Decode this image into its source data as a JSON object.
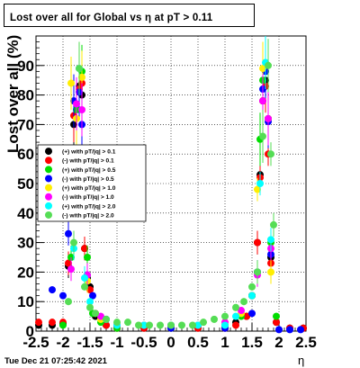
{
  "title": "Lost over all for Global vs  η at pT > 0.11",
  "timestamp": "Tue Dec 21 07:25:42 2021",
  "chart_data": {
    "type": "scatter",
    "title": "Lost over all for Global vs  η at pT > 0.11",
    "xlabel": "η",
    "ylabel": "Lost over all (%)",
    "xlim": [
      -2.5,
      2.5
    ],
    "ylim": [
      0,
      100
    ],
    "grid": true,
    "legend_position": "left",
    "x_ticks": [
      "-2.5",
      "-2",
      "-1.5",
      "-1",
      "-0.5",
      "0",
      "0.5",
      "1",
      "1.5",
      "2",
      "2.5"
    ],
    "y_ticks": [
      "0",
      "10",
      "20",
      "30",
      "40",
      "50",
      "60",
      "70",
      "80",
      "90"
    ],
    "series": [
      {
        "name": "(+) with pT/|q| > 0.1",
        "color": "#000000",
        "x": [
          -2.45,
          -2.2,
          -2.0,
          -1.9,
          -1.8,
          -1.7,
          -1.65,
          -1.6,
          -1.55,
          -1.5,
          -1.4,
          -1.2,
          -1.0,
          -0.5,
          0.0,
          0.5,
          1.0,
          1.2,
          1.4,
          1.5,
          1.6,
          1.65,
          1.7,
          1.75,
          1.8,
          1.85,
          1.95,
          2.2,
          2.45
        ],
        "y": [
          2,
          2,
          2.5,
          22,
          70,
          83,
          80,
          28,
          18,
          15,
          5,
          2,
          1,
          1,
          1,
          1,
          1,
          3,
          5,
          12,
          30,
          53,
          78,
          85,
          72,
          25,
          3,
          1,
          1
        ]
      },
      {
        "name": "(-) with pT/|q| > 0.1",
        "color": "#ff0000",
        "x": [
          -2.45,
          -2.2,
          -2.0,
          -1.9,
          -1.8,
          -1.7,
          -1.65,
          -1.6,
          -1.55,
          -1.5,
          -1.4,
          -1.2,
          -1.0,
          -0.5,
          0.0,
          0.5,
          1.0,
          1.2,
          1.4,
          1.5,
          1.6,
          1.65,
          1.7,
          1.75,
          1.8,
          1.85,
          1.95,
          2.2,
          2.45
        ],
        "y": [
          3,
          3,
          3,
          23,
          73,
          82,
          84,
          28,
          19,
          14,
          6,
          2,
          1,
          1,
          1,
          1,
          1,
          2,
          5,
          12,
          30,
          52,
          78,
          83,
          60,
          23,
          3,
          1,
          1
        ]
      },
      {
        "name": "(+) with pT/|q| > 0.5",
        "color": "#00dd00",
        "x": [
          -2.0,
          -1.85,
          -1.75,
          -1.65,
          -1.55,
          -1.45,
          -1.3,
          -1.0,
          -0.5,
          0.0,
          0.5,
          1.0,
          1.3,
          1.5,
          1.6,
          1.65,
          1.7,
          1.75,
          1.8,
          1.85,
          1.95
        ],
        "y": [
          2,
          25,
          75,
          88,
          25,
          6,
          3,
          1,
          2,
          1,
          2,
          2,
          5,
          12,
          20,
          65,
          85,
          88,
          72,
          30,
          5
        ]
      },
      {
        "name": "(-) with pT/|q| > 0.5",
        "color": "#0000ff",
        "x": [
          -2.2,
          -2.0,
          -1.9,
          -1.8,
          -1.7,
          -1.65,
          -1.55,
          -1.45,
          -1.2,
          -1.0,
          0.0,
          1.0,
          1.5,
          1.6,
          1.7,
          1.75,
          1.8,
          1.85,
          2.0,
          2.2,
          2.4
        ],
        "y": [
          14,
          12,
          33,
          78,
          81,
          70,
          19,
          12,
          4,
          2,
          1,
          1,
          6,
          20,
          82,
          88,
          71,
          26,
          0.5,
          0.5,
          0.5
        ]
      },
      {
        "name": "(+) with pT/|q| > 1.0",
        "color": "#ffee00",
        "x": [
          -1.85,
          -1.75,
          -1.65,
          -1.55,
          -1.3,
          -1.0,
          -0.5,
          0.0,
          0.5,
          1.0,
          1.3,
          1.6,
          1.7,
          1.8,
          1.85
        ],
        "y": [
          84,
          72,
          86,
          17,
          4,
          2,
          2,
          2,
          2,
          3,
          6,
          48,
          89,
          72,
          20
        ]
      },
      {
        "name": "(-) with pT/|q| > 1.0",
        "color": "#ff00ff",
        "x": [
          -1.85,
          -1.75,
          -1.65,
          -1.55,
          -1.3,
          -1.0,
          -0.5,
          0.0,
          0.5,
          1.0,
          1.3,
          1.6,
          1.7,
          1.8,
          1.85
        ],
        "y": [
          21,
          77,
          75,
          19,
          5,
          2,
          2,
          2,
          2,
          3,
          7,
          19,
          78,
          72,
          28
        ]
      },
      {
        "name": "(+) with pT/|q| > 2.0",
        "color": "#00ffff",
        "x": [
          -1.8,
          -1.7,
          -1.6,
          -1.5,
          -1.2,
          -1.0,
          -0.5,
          0.0,
          0.5,
          1.0,
          1.2,
          1.5,
          1.65,
          1.75,
          1.85
        ],
        "y": [
          28,
          89,
          18,
          10,
          4,
          2,
          2,
          2,
          2,
          2,
          5,
          12,
          50,
          91,
          31
        ]
      },
      {
        "name": "(-) with pT/|q| > 2.0",
        "color": "#55dd55",
        "x": [
          -1.9,
          -1.8,
          -1.7,
          -1.6,
          -1.5,
          -1.4,
          -1.2,
          -1.0,
          -0.8,
          -0.6,
          -0.4,
          -0.2,
          0.0,
          0.2,
          0.4,
          0.6,
          0.8,
          1.0,
          1.2,
          1.35,
          1.5,
          1.6,
          1.7,
          1.8,
          1.85,
          1.9
        ],
        "y": [
          10,
          30,
          89,
          15,
          8,
          6,
          4,
          3,
          3,
          2,
          2,
          2,
          2,
          2,
          2,
          3,
          4,
          5,
          8,
          10,
          15,
          20,
          66,
          90,
          60,
          36
        ]
      }
    ]
  }
}
